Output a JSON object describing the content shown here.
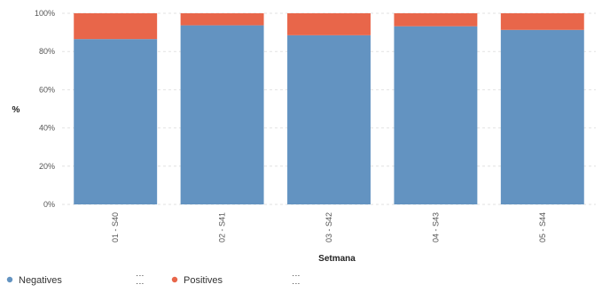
{
  "chart_data": {
    "type": "bar",
    "stacked": true,
    "normalized": true,
    "categories": [
      "01 - S40",
      "02 - S41",
      "03 - S42",
      "04 - S43",
      "05 - S44"
    ],
    "series": [
      {
        "name": "Negatives",
        "values": [
          86.5,
          93.7,
          88.5,
          93.2,
          91.3
        ],
        "color": "#6393c1"
      },
      {
        "name": "Positives",
        "values": [
          13.5,
          6.3,
          11.5,
          6.8,
          8.7
        ],
        "color": "#e8664a"
      }
    ],
    "xlabel": "Setmana",
    "ylabel": "%",
    "ylim": [
      0,
      100
    ],
    "yticks": [
      "0%",
      "20%",
      "40%",
      "60%",
      "80%",
      "100%"
    ],
    "grid": true,
    "legend_position": "bottom-left",
    "legend_menu_glyph": "⋮⋮"
  }
}
